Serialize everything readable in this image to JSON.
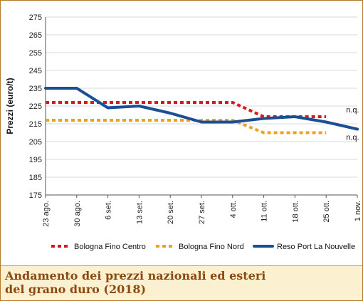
{
  "chart_data": {
    "type": "line",
    "ylabel": "Prezzi (euro/t)",
    "xlabel": "",
    "ylim": [
      175,
      275
    ],
    "yticks": [
      175,
      185,
      195,
      205,
      215,
      225,
      235,
      245,
      255,
      265,
      275
    ],
    "categories": [
      "23 ago.",
      "30 ago.",
      "6 set.",
      "13 set.",
      "20 set.",
      "27 set.",
      "4 ott.",
      "11 ott.",
      "18 ott.",
      "25 ott.",
      "1 nov."
    ],
    "grid": true,
    "legend_position": "bottom",
    "series": [
      {
        "name": "Bologna Fino Centro",
        "style": "dotted",
        "color": "#d7191c",
        "values": [
          227,
          227,
          227,
          227,
          227,
          227,
          227,
          219,
          219,
          219,
          null
        ]
      },
      {
        "name": "Bologna Fino Nord",
        "style": "dotted",
        "color": "#f0a020",
        "values": [
          217,
          217,
          217,
          217,
          217,
          217,
          217,
          210,
          210,
          210,
          null
        ]
      },
      {
        "name": "Reso Port La Nouvelle",
        "style": "solid",
        "color": "#1a4f96",
        "values": [
          235,
          235,
          224,
          225,
          221,
          216,
          216,
          218,
          219,
          216,
          212
        ]
      }
    ],
    "annotations": [
      {
        "text": "n.q.",
        "series": 0
      },
      {
        "text": "n.q.",
        "series": 1
      }
    ]
  },
  "caption": {
    "line1": "Andamento dei prezzi nazionali ed esteri",
    "line2": "del grano duro (2018)"
  },
  "colors": {
    "frame": "#b07a2a",
    "caption_bg": "#fbf1d0",
    "caption_text": "#8b4a12"
  }
}
